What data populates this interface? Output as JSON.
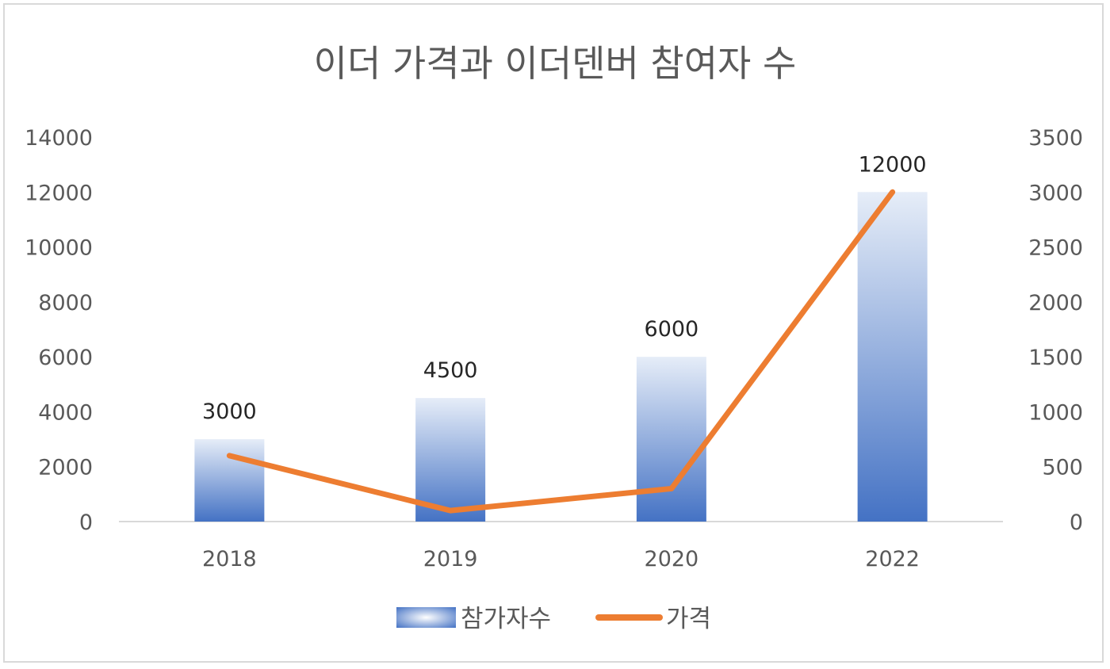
{
  "chart_data": {
    "type": "bar",
    "title": "이더 가격과 이더덴버 참여자 수",
    "categories": [
      "2018",
      "2019",
      "2020",
      "2022"
    ],
    "series": [
      {
        "name": "참가자수",
        "type": "bar",
        "axis": "left",
        "values": [
          3000,
          4500,
          6000,
          12000
        ],
        "data_labels": [
          "3000",
          "4500",
          "6000",
          "12000"
        ],
        "color": "#4472C4"
      },
      {
        "name": "가격",
        "type": "line",
        "axis": "right",
        "values": [
          600,
          100,
          300,
          3000
        ],
        "color": "#ED7D31"
      }
    ],
    "y_left": {
      "ylim": [
        0,
        14000
      ],
      "ticks": [
        "0",
        "2000",
        "4000",
        "6000",
        "8000",
        "10000",
        "12000",
        "14000"
      ]
    },
    "y_right": {
      "ylim": [
        0,
        3500
      ],
      "ticks": [
        "0",
        "500",
        "1000",
        "1500",
        "2000",
        "2500",
        "3000",
        "3500"
      ]
    },
    "grid": false,
    "legend": "bottom"
  }
}
